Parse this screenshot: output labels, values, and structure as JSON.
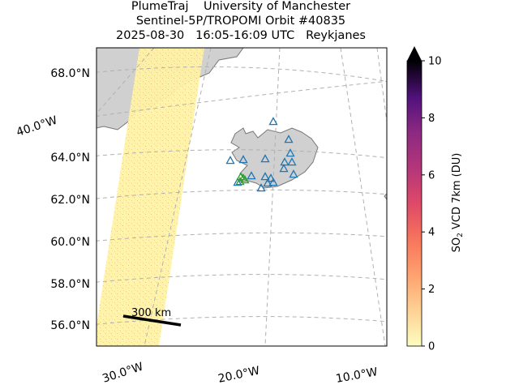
{
  "title": {
    "line1": "PlumeTraj    University of Manchester",
    "line2": "Sentinel-5P/TROPOMI Orbit #40835",
    "line3": "2025-08-30   16:05-16:09 UTC   Reykjanes"
  },
  "map": {
    "lat_labels": [
      "68.0°N",
      "64.0°N",
      "62.0°N",
      "60.0°N",
      "58.0°N",
      "56.0°N"
    ],
    "lon_labels": [
      "30.0°W",
      "20.0°W",
      "10.0°W"
    ],
    "side_lon_label": "40.0°W",
    "scale_bar_label": "300 km",
    "volcano_count_blue": 17,
    "target_volcano_count_green": 4,
    "colors": {
      "land": "#d0d0d0",
      "coast": "#777777",
      "swath": "#fff5b0",
      "volcano": "#1f77b4",
      "target_volcano": "#2ca02c",
      "grid": "#b0b0b0"
    }
  },
  "colorbar": {
    "label_main": "SO",
    "label_sub": "2",
    "label_rest": " VCD 7km (DU)",
    "ticks": [
      "0",
      "2",
      "4",
      "6",
      "8",
      "10"
    ],
    "vmin": 0,
    "vmax": 10,
    "extend": "max",
    "colormap": "magma_r"
  }
}
